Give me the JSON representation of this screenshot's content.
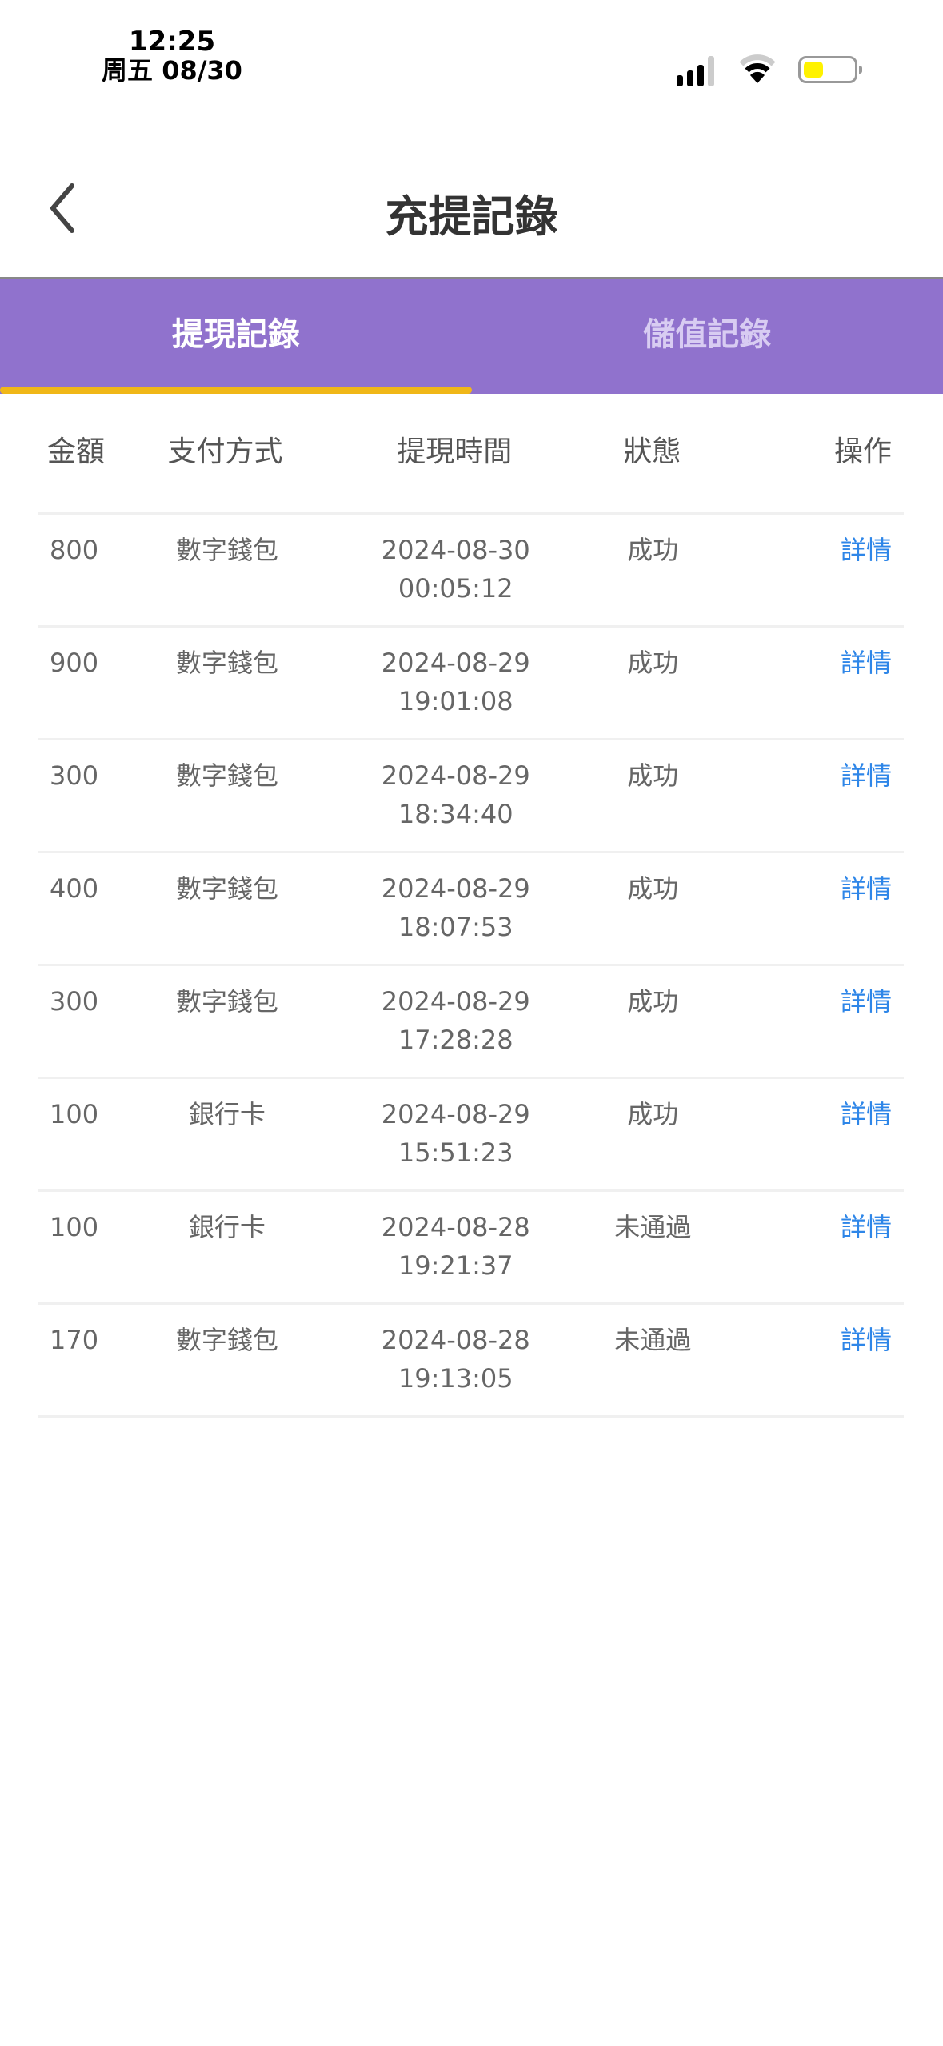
{
  "status_bar": {
    "time": "12:25",
    "date": "周五 08/30",
    "battery_color": "#fff200"
  },
  "header": {
    "title": "充提記錄"
  },
  "tabs": [
    {
      "label": "提現記錄",
      "active": true
    },
    {
      "label": "儲值記錄",
      "active": false
    }
  ],
  "colors": {
    "tab_bar": "#9072cd",
    "indicator": "#f0b718",
    "link": "#2e86e8"
  },
  "table": {
    "columns": [
      "金額",
      "支付方式",
      "提現時間",
      "狀態",
      "操作"
    ],
    "rows": [
      {
        "amount": "800",
        "method": "數字錢包",
        "date": "2024-08-30",
        "time": "00:05:12",
        "status": "成功",
        "action": "詳情"
      },
      {
        "amount": "900",
        "method": "數字錢包",
        "date": "2024-08-29",
        "time": "19:01:08",
        "status": "成功",
        "action": "詳情"
      },
      {
        "amount": "300",
        "method": "數字錢包",
        "date": "2024-08-29",
        "time": "18:34:40",
        "status": "成功",
        "action": "詳情"
      },
      {
        "amount": "400",
        "method": "數字錢包",
        "date": "2024-08-29",
        "time": "18:07:53",
        "status": "成功",
        "action": "詳情"
      },
      {
        "amount": "300",
        "method": "數字錢包",
        "date": "2024-08-29",
        "time": "17:28:28",
        "status": "成功",
        "action": "詳情"
      },
      {
        "amount": "100",
        "method": "銀行卡",
        "date": "2024-08-29",
        "time": "15:51:23",
        "status": "成功",
        "action": "詳情"
      },
      {
        "amount": "100",
        "method": "銀行卡",
        "date": "2024-08-28",
        "time": "19:21:37",
        "status": "未通過",
        "action": "詳情"
      },
      {
        "amount": "170",
        "method": "數字錢包",
        "date": "2024-08-28",
        "time": "19:13:05",
        "status": "未通過",
        "action": "詳情"
      }
    ]
  }
}
